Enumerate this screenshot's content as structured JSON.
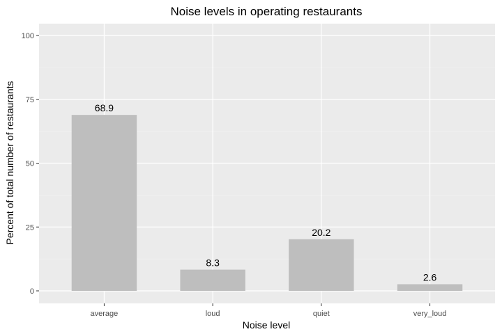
{
  "chart_data": {
    "type": "bar",
    "title": "Noise levels in operating restaurants",
    "xlabel": "Noise level",
    "ylabel": "Percent of total number of restaurants",
    "categories": [
      "average",
      "loud",
      "quiet",
      "very_loud"
    ],
    "values": [
      68.9,
      8.3,
      20.2,
      2.6
    ],
    "data_labels": [
      "68.9",
      "8.3",
      "20.2",
      "2.6"
    ],
    "ylim": [
      0,
      100
    ],
    "yticks": [
      0,
      25,
      50,
      75,
      100
    ],
    "ytick_labels": [
      "0",
      "25",
      "50",
      "75",
      "100"
    ],
    "grid": true,
    "legend": "none"
  },
  "colors": {
    "panel_background": "#ebebeb",
    "grid_major": "#ffffff",
    "grid_minor": "#f5f5f5",
    "bar_fill": "#bebebe",
    "tick_text": "#4d4d4d",
    "text": "#000000"
  }
}
